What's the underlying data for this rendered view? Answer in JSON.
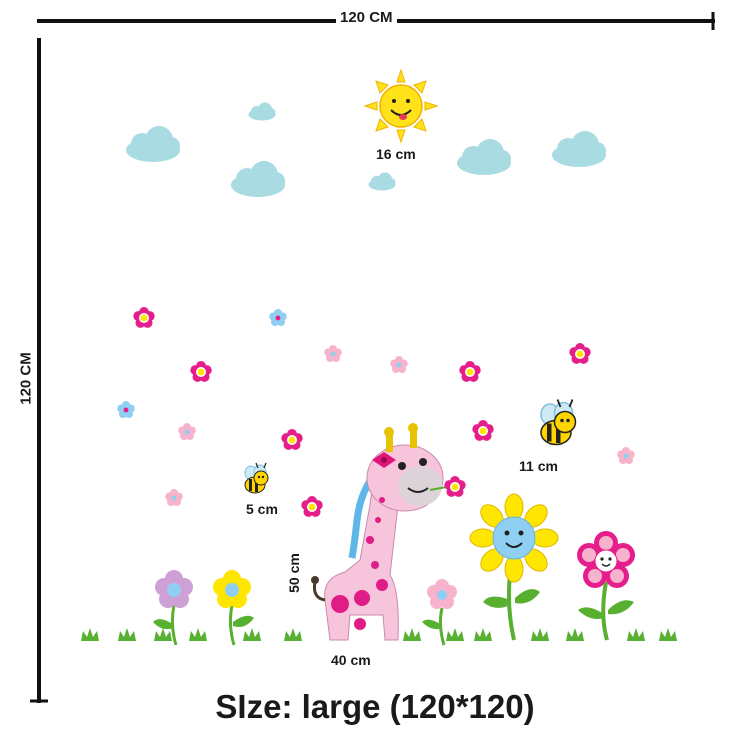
{
  "dimensions": {
    "width_label": "120 CM",
    "height_label": "120 CM"
  },
  "labels": {
    "sun": "16 cm",
    "big_bee": "11 cm",
    "small_bee": "5 cm",
    "giraffe_width": "40 cm",
    "giraffe_height": "50 cm"
  },
  "size_caption": "SIze: large (120*120)",
  "colors": {
    "cloud": "#a9dbe3",
    "sun": "#ffe21a",
    "giraffe": "#f6c5dc",
    "giraffe_spot": "#e01c86",
    "sunflower_petal": "#ffe600",
    "flower_center_blue": "#8fd0f2",
    "grass": "#58b030",
    "flower_magenta": "#e61e8c",
    "flower_pink": "#f7b3cd",
    "flower_light_blue": "#8fcff2",
    "line": "#111111"
  },
  "icons": [
    "sun-icon",
    "cloud-icon",
    "bee-icon",
    "giraffe-icon",
    "flower-icon",
    "sunflower-icon",
    "grass-icon"
  ]
}
